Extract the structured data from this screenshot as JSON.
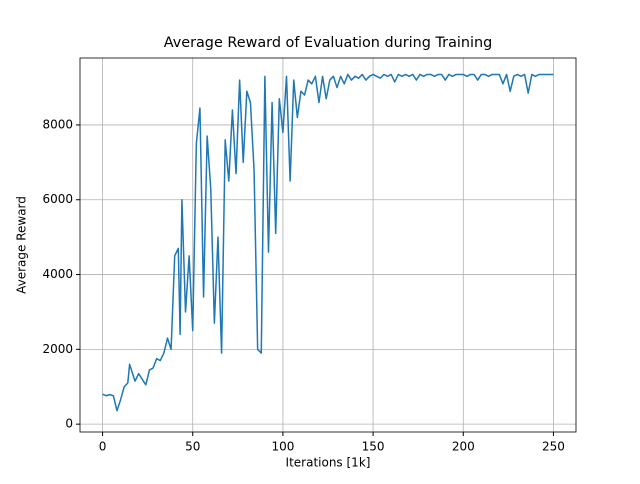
{
  "chart_data": {
    "type": "line",
    "title": "Average Reward of Evaluation during Training",
    "x_label": "Iterations [1k]",
    "y_label": "Average Reward",
    "x": [
      0,
      2,
      4,
      6,
      8,
      10,
      12,
      14,
      15,
      18,
      20,
      22,
      24,
      26,
      28,
      30,
      32,
      34,
      36,
      38,
      40,
      42,
      43,
      44,
      46,
      48,
      50,
      52,
      54,
      56,
      58,
      60,
      62,
      64,
      66,
      68,
      70,
      72,
      74,
      76,
      78,
      80,
      82,
      84,
      86,
      88,
      90,
      92,
      94,
      96,
      98,
      100,
      102,
      104,
      106,
      108,
      110,
      112,
      114,
      116,
      118,
      120,
      122,
      124,
      126,
      128,
      130,
      132,
      134,
      136,
      138,
      140,
      142,
      144,
      146,
      148,
      150,
      152,
      154,
      156,
      158,
      160,
      162,
      164,
      166,
      168,
      170,
      172,
      174,
      176,
      178,
      180,
      182,
      184,
      186,
      188,
      190,
      192,
      194,
      196,
      198,
      200,
      202,
      204,
      206,
      208,
      210,
      212,
      214,
      216,
      218,
      220,
      222,
      224,
      226,
      228,
      230,
      232,
      234,
      236,
      238,
      240,
      242,
      244,
      246,
      248,
      250
    ],
    "series": [
      {
        "name": "Average Reward",
        "color": "#1f77b4",
        "values": [
          800,
          760,
          790,
          760,
          360,
          650,
          1000,
          1100,
          1600,
          1150,
          1350,
          1200,
          1050,
          1450,
          1500,
          1750,
          1700,
          1900,
          2300,
          2000,
          4500,
          4700,
          2400,
          6000,
          3000,
          4500,
          2500,
          7500,
          8450,
          3400,
          7700,
          6300,
          2700,
          5000,
          1900,
          7600,
          6500,
          8400,
          6700,
          9200,
          7000,
          8900,
          8600,
          6800,
          2000,
          1900,
          9300,
          4600,
          8600,
          5100,
          8700,
          7800,
          9300,
          6500,
          9200,
          8200,
          8900,
          8800,
          9200,
          9100,
          9300,
          8600,
          9300,
          8700,
          9200,
          9300,
          9000,
          9300,
          9100,
          9350,
          9200,
          9300,
          9250,
          9350,
          9200,
          9300,
          9350,
          9300,
          9250,
          9350,
          9300,
          9350,
          9150,
          9350,
          9300,
          9350,
          9300,
          9350,
          9200,
          9350,
          9300,
          9350,
          9350,
          9300,
          9350,
          9350,
          9200,
          9350,
          9300,
          9350,
          9350,
          9350,
          9300,
          9350,
          9350,
          9200,
          9350,
          9350,
          9300,
          9350,
          9350,
          9350,
          9100,
          9350,
          8900,
          9300,
          9350,
          9300,
          9350,
          8850,
          9350,
          9300,
          9350,
          9350,
          9350,
          9350,
          9350
        ]
      }
    ],
    "xlim": [
      -12.5,
      262.5
    ],
    "ylim": [
      -210,
      9790
    ],
    "xticks": [
      0,
      50,
      100,
      150,
      200,
      250
    ],
    "yticks": [
      0,
      2000,
      4000,
      6000,
      8000
    ],
    "grid": true
  }
}
